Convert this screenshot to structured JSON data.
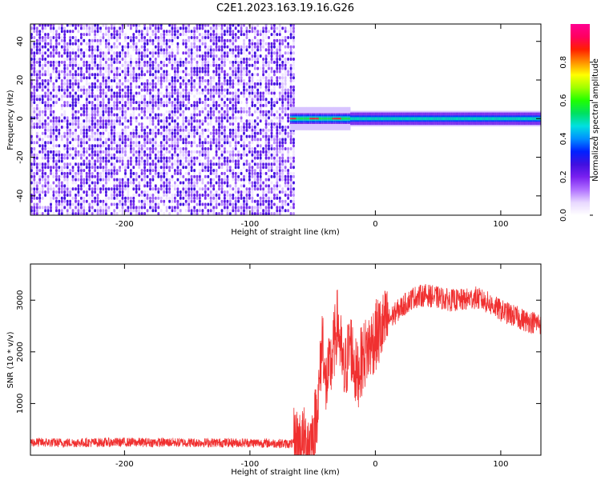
{
  "title": "C2E1.2023.163.19.16.G26",
  "chart_data": [
    {
      "type": "heatmap",
      "title": "C2E1.2023.163.19.16.G26",
      "xlabel": "Height of straight line (km)",
      "ylabel": "Frequency (Hz)",
      "xlim": [
        -275,
        132
      ],
      "ylim": [
        -50,
        49
      ],
      "xticks": [
        -200,
        -100,
        0,
        100
      ],
      "yticks": [
        -40,
        -20,
        0,
        20,
        40
      ],
      "colorbar": {
        "label": "Normalized spectral amplitude",
        "range": [
          0.0,
          1.0
        ],
        "ticks": [
          0.0,
          0.2,
          0.4,
          0.6,
          0.8
        ],
        "colors": [
          "#ffffff",
          "#e8d8ff",
          "#b070ff",
          "#7a20f0",
          "#4010e0",
          "#0020ff",
          "#0090ff",
          "#00e0e0",
          "#00e060",
          "#20ff00",
          "#a0ff00",
          "#ffff00",
          "#ff9000",
          "#ff2000",
          "#ff0060",
          "#ff0090"
        ]
      },
      "features": {
        "noise_region_x": [
          -275,
          -65
        ],
        "signal_band_x": [
          -68,
          132
        ],
        "signal_center_frequency": 0
      }
    },
    {
      "type": "line",
      "xlabel": "Height of straight line (km)",
      "ylabel": "SNR (10 * v/v)",
      "xlim": [
        -275,
        132
      ],
      "ylim": [
        0,
        3700
      ],
      "xticks": [
        -200,
        -100,
        0,
        100
      ],
      "yticks": [
        1000,
        2000,
        3000
      ],
      "color": "#f03030",
      "series": [
        {
          "x": [
            -275,
            -250,
            -200,
            -150,
            -100,
            -80,
            -70,
            -60,
            -50,
            -45,
            -42,
            -40,
            -35,
            -30,
            -25,
            -20,
            -15,
            -10,
            -5,
            0,
            10,
            20,
            30,
            40,
            50,
            60,
            70,
            80,
            90,
            100,
            110,
            120,
            132
          ],
          "values": [
            250,
            240,
            250,
            245,
            240,
            230,
            220,
            230,
            300,
            1200,
            2400,
            1300,
            1800,
            2600,
            1500,
            2200,
            1500,
            1900,
            2100,
            2300,
            2600,
            2850,
            3050,
            3100,
            3050,
            3000,
            3000,
            3050,
            2950,
            2800,
            2700,
            2600,
            2550
          ]
        }
      ]
    }
  ]
}
